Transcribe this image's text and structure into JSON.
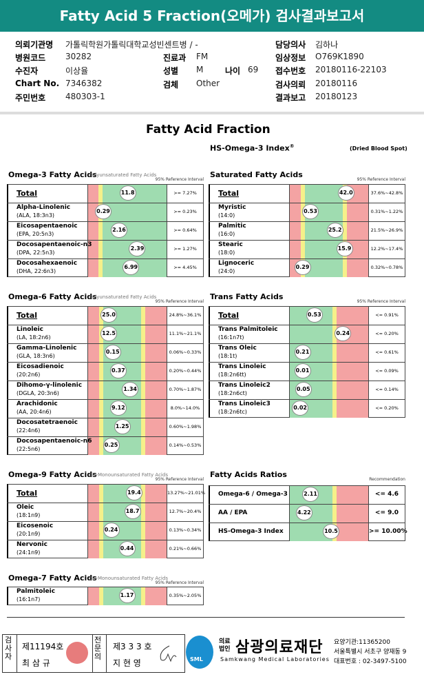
{
  "header": {
    "title": "Fatty Acid 5 Fraction(오메가) 검사결과보고서"
  },
  "info": [
    {
      "label": "의뢰기관명",
      "value": "가톨릭학원가톨릭대학교성빈센트병 / -"
    },
    {
      "label": "담당의사",
      "value": "김하나"
    },
    {
      "label": "병원코드",
      "value": "30282"
    },
    {
      "label": "진료과",
      "value": "FM"
    },
    {
      "label": "임상정보",
      "value": "O769K1890"
    },
    {
      "label": "수진자",
      "value": "이상율"
    },
    {
      "label": "성별",
      "value": "M"
    },
    {
      "label": "나이",
      "value": "69"
    },
    {
      "label": "접수번호",
      "value": "20180116-22103"
    },
    {
      "label": "Chart No.",
      "value": "7346382"
    },
    {
      "label": "검체",
      "value": "Other"
    },
    {
      "label": "검사의뢰",
      "value": "20180116"
    },
    {
      "label": "주민번호",
      "value": "480303-1"
    },
    {
      "label": "결과보고",
      "value": "20180123"
    }
  ],
  "report": {
    "title": "Fatty Acid Fraction",
    "index_title": "HS-Omega-3 Index",
    "reg": "®",
    "specimen": "(Dried Blood Spot)"
  },
  "panels": [
    {
      "title": "Omega-3 Fatty Acids",
      "subtitle": "Polyunsaturated Fatty Acids",
      "ref_label": "95% Reference Interval",
      "rows": [
        {
          "name": "Total",
          "value": "11.8",
          "range": ">= 7.27%"
        },
        {
          "name": "Alpha-Linolenic",
          "sub": "(ALA, 18:3n3)",
          "value": "0.29",
          "range": ">= 0.23%"
        },
        {
          "name": "Eicosapentaenoic",
          "sub": "(EPA, 20:5n3)",
          "value": "2.16",
          "range": ">= 0.64%"
        },
        {
          "name": "Docosapentaenoic-n3",
          "sub": "(DPA, 22:5n3)",
          "value": "2.39",
          "range": ">= 1.27%"
        },
        {
          "name": "Docosahexaenoic",
          "sub": "(DHA, 22:6n3)",
          "value": "6.99",
          "range": ">= 4.45%"
        }
      ]
    },
    {
      "title": "Saturated Fatty Acids",
      "ref_label": "95% Reference Interval",
      "rows": [
        {
          "name": "Total",
          "value": "42.0",
          "range": "37.6%~42.8%"
        },
        {
          "name": "Myristic",
          "sub": "(14:0)",
          "value": "0.53",
          "range": "0.31%~1.22%"
        },
        {
          "name": "Palmitic",
          "sub": "(16:0)",
          "value": "25.2",
          "range": "21.5%~26.9%"
        },
        {
          "name": "Stearic",
          "sub": "(18:0)",
          "value": "15.9",
          "range": "12.2%~17.4%"
        },
        {
          "name": "Lignoceric",
          "sub": "(24:0)",
          "value": "0.29",
          "range": "0.32%~0.78%"
        }
      ]
    },
    {
      "title": "Omega-6 Fatty Acids",
      "subtitle": "Polyunsaturated Fatty Acids",
      "ref_label": "95% Reference Interval",
      "rows": [
        {
          "name": "Total",
          "value": "25.0",
          "range": "24.8%~36.1%"
        },
        {
          "name": "Linoleic",
          "sub": "(LA, 18:2n6)",
          "value": "12.5",
          "range": "11.1%~21.1%"
        },
        {
          "name": "Gamma-Linolenic",
          "sub": "(GLA, 18:3n6)",
          "value": "0.15",
          "range": "0.06%~0.33%"
        },
        {
          "name": "Eicosadienoic",
          "sub": "(20:2n6)",
          "value": "0.37",
          "range": "0.20%~0.44%"
        },
        {
          "name": "Dihomo-γ-linolenic",
          "sub": "(DGLA, 20:3n6)",
          "value": "1.34",
          "range": "0.70%~1.87%"
        },
        {
          "name": "Arachidonic",
          "sub": "(AA, 20:4n6)",
          "value": "9.12",
          "range": "8.0%~14.0%"
        },
        {
          "name": "Docosatetraenoic",
          "sub": "(22:4n6)",
          "value": "1.25",
          "range": "0.60%~1.98%"
        },
        {
          "name": "Docosapentaenoic-n6",
          "sub": "(22:5n6)",
          "value": "0.25",
          "range": "0.14%~0.53%"
        }
      ]
    },
    {
      "title": "Trans Fatty Acids",
      "ref_label": "95% Reference Interval",
      "rows": [
        {
          "name": "Total",
          "value": "0.53",
          "range": "<= 0.91%"
        },
        {
          "name": "Trans Palmitoleic",
          "sub": "(16:1n7t)",
          "value": "0.24",
          "range": "<= 0.20%"
        },
        {
          "name": "Trans Oleic",
          "sub": "(18:1t)",
          "value": "0.21",
          "range": "<= 0.61%"
        },
        {
          "name": "Trans Linoleic",
          "sub": "(18:2n6tt)",
          "value": "0.01",
          "range": "<= 0.09%"
        },
        {
          "name": "Trans Linoleic2",
          "sub": "(18:2n6ct)",
          "value": "0.05",
          "range": "<= 0.14%"
        },
        {
          "name": "Trans Linoleic3",
          "sub": "(18:2n6tc)",
          "value": "0.02",
          "range": "<= 0.20%"
        }
      ]
    },
    {
      "title": "Omega-9 Fatty Acids",
      "subtitle": "cis-Monounsaturated Fatty Acids",
      "ref_label": "95% Reference Interval",
      "rows": [
        {
          "name": "Total",
          "value": "19.4",
          "range": "13.27%~21.01%"
        },
        {
          "name": "Oleic",
          "sub": "(18:1n9)",
          "value": "18.7",
          "range": "12.7%~20.4%"
        },
        {
          "name": "Eicosenoic",
          "sub": "(20:1n9)",
          "value": "0.24",
          "range": "0.13%~0.34%"
        },
        {
          "name": "Nervonic",
          "sub": "(24:1n9)",
          "value": "0.44",
          "range": "0.21%~0.66%"
        }
      ]
    },
    {
      "title": "Fatty Acids Ratios",
      "ref_label": "Recommendation",
      "rows": [
        {
          "name": "Omega-6 / Omega-3",
          "value": "2.11",
          "range": "<= 4.6"
        },
        {
          "name": "AA / EPA",
          "value": "4.22",
          "range": "<= 9.0"
        },
        {
          "name": "HS-Omega-3 Index",
          "value": "10.5",
          "range": ">= 10.00%"
        }
      ]
    },
    {
      "title": "Omega-7 Fatty Acids",
      "subtitle": "cis-Monounsaturated Fatty Acids",
      "ref_label": "95% Reference Interval",
      "rows": [
        {
          "name": "Palmitoleic",
          "sub": "(16:1n7)",
          "value": "1.17",
          "range": "0.35%~2.05%"
        }
      ]
    }
  ],
  "footer": {
    "tester_label": "검사자",
    "tester_no": "제11194호",
    "tester_name": "최 삼 규",
    "doctor_label": "전문의",
    "doctor_no": "제3 3 3 호",
    "doctor_name": "지 현 영",
    "logo": "SML",
    "org_prefix": "의료법인",
    "org": "삼광의료재단",
    "org_en": "Samkwang Medical Laboratories",
    "code": "요양기관:11365200",
    "address": "서울특별시 서초구 양재동 9",
    "phone": "대표번호 : 02-3497-5100"
  }
}
